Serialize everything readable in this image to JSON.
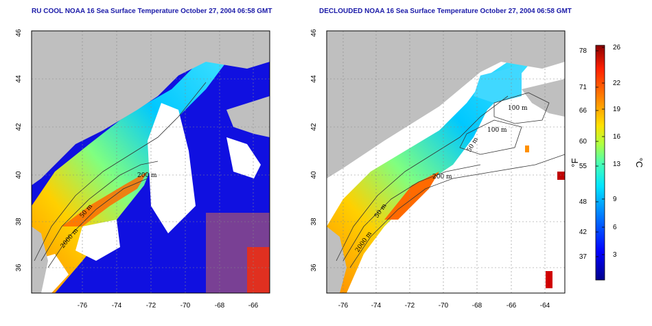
{
  "panels": [
    {
      "title": "RU COOL NOAA 16 Sea Surface Temperature October 27, 2004 06:58 GMT",
      "isobath_labels": [
        "200 m",
        "50 m",
        "2000 m"
      ]
    },
    {
      "title": "DECLOUDED NOAA 16 Sea Surface Temperature October 27, 2004 06:58 GMT",
      "isobath_labels": [
        "100 m",
        "100 m",
        "50 m",
        "200 m",
        "50 m",
        "2000 m"
      ]
    }
  ],
  "axes": {
    "x_ticks": [
      "-76",
      "-74",
      "-72",
      "-70",
      "-68",
      "-66",
      "-64"
    ],
    "y_ticks": [
      "36",
      "38",
      "40",
      "42",
      "44",
      "46"
    ]
  },
  "colorbar": {
    "fahrenheit_ticks": [
      "78",
      "71",
      "66",
      "60",
      "55",
      "48",
      "42",
      "37"
    ],
    "celsius_ticks": [
      "26",
      "22",
      "19",
      "16",
      "13",
      "9",
      "6",
      "3"
    ],
    "fahrenheit_unit": "°F",
    "celsius_unit": "°C",
    "range_c": [
      0,
      27
    ],
    "colors": [
      "#00008b",
      "#0000ff",
      "#0080ff",
      "#00e5ff",
      "#4cffb0",
      "#b0ff40",
      "#ffe000",
      "#ff8000",
      "#ff2000",
      "#8b0000"
    ]
  },
  "colors": {
    "land": "#bfbfbf",
    "cloud": "#ffffff",
    "title": "#1a1aa8"
  }
}
